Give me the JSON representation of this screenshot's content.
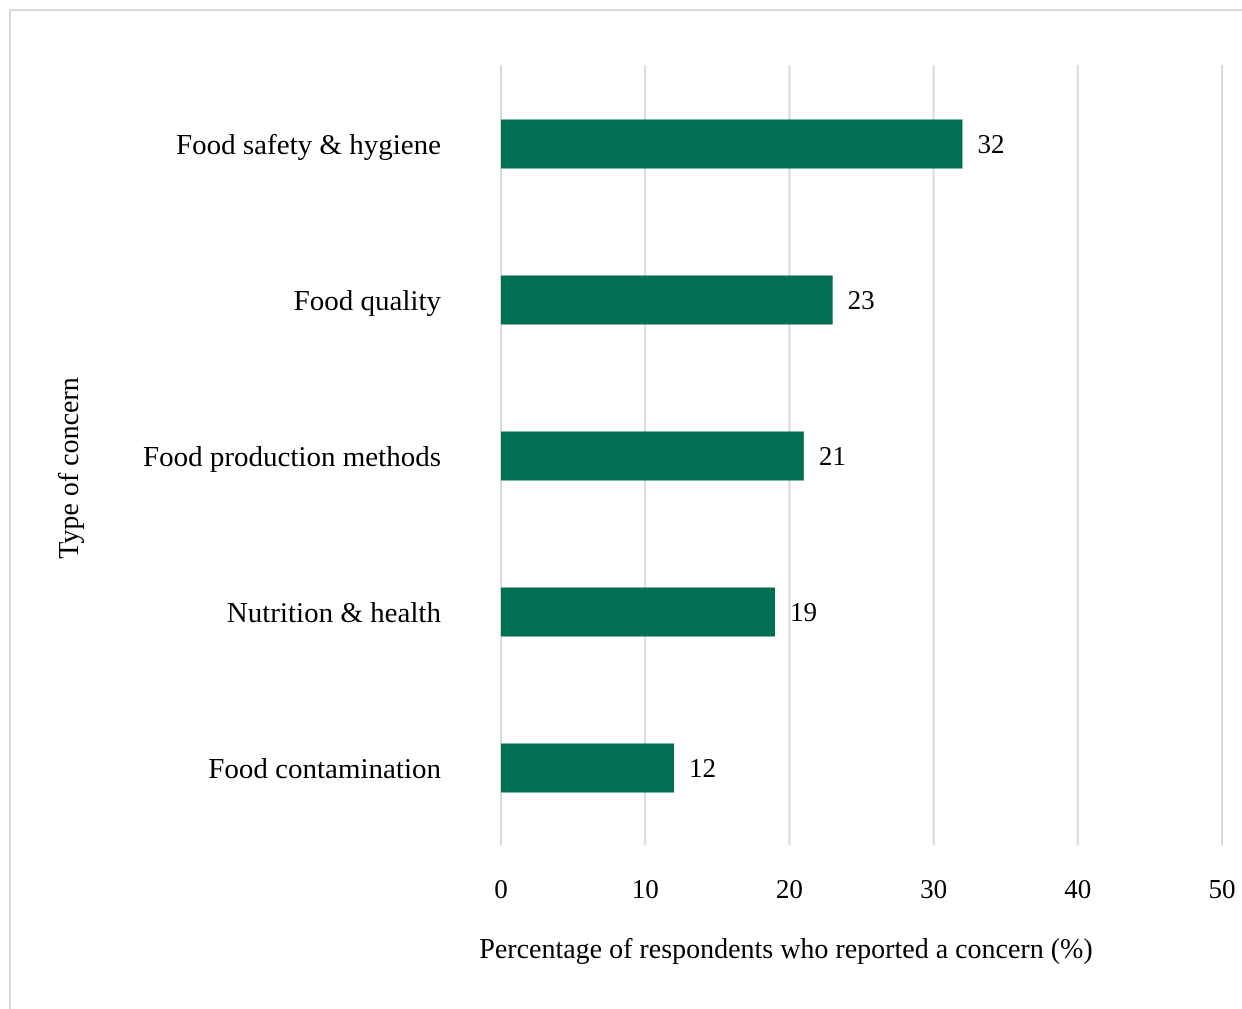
{
  "colors": {
    "bar": "#006F52",
    "gridline": "#d9d9d9",
    "frame": "#d9d9d9",
    "text": "#000000"
  },
  "chart_data": {
    "type": "bar",
    "orientation": "horizontal",
    "title": "",
    "xlabel": "Percentage of respondents who reported a concern (%)",
    "ylabel": "Type of concern",
    "categories": [
      "Food safety & hygiene",
      "Food quality",
      "Food production methods",
      "Nutrition & health",
      "Food contamination"
    ],
    "values": [
      32,
      23,
      21,
      19,
      12
    ],
    "data_labels": [
      "32",
      "23",
      "21",
      "19",
      "12"
    ],
    "xlim": [
      0,
      50
    ],
    "xticks": [
      0,
      10,
      20,
      30,
      40,
      50
    ],
    "xtick_labels": [
      "0",
      "10",
      "20",
      "30",
      "40",
      "50"
    ],
    "grid": "vertical",
    "legend": "none"
  }
}
